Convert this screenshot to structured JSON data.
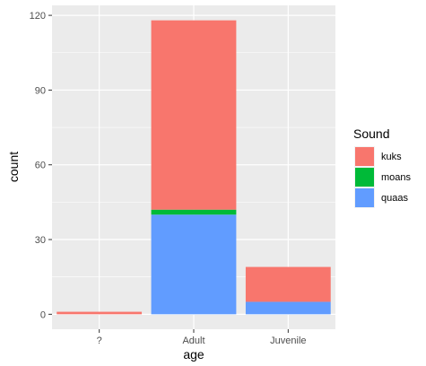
{
  "chart_data": {
    "type": "bar",
    "stacked": true,
    "categories": [
      "?",
      "Adult",
      "Juvenile"
    ],
    "series": [
      {
        "name": "kuks",
        "color": "#F8766D",
        "values": [
          1,
          76,
          14
        ]
      },
      {
        "name": "moans",
        "color": "#00BA38",
        "values": [
          0,
          2,
          0
        ]
      },
      {
        "name": "quaas",
        "color": "#619CFF",
        "values": [
          0,
          40,
          5
        ]
      }
    ],
    "stack_order_bottom_to_top": [
      "quaas",
      "moans",
      "kuks"
    ],
    "xlabel": "age",
    "ylabel": "count",
    "ylim": [
      -6,
      124
    ],
    "yticks": [
      0,
      30,
      60,
      90,
      120
    ],
    "grid": true,
    "legend": {
      "title": "Sound",
      "position": "right"
    },
    "panel_background": "#EBEBEB",
    "grid_color": "#FFFFFF"
  }
}
